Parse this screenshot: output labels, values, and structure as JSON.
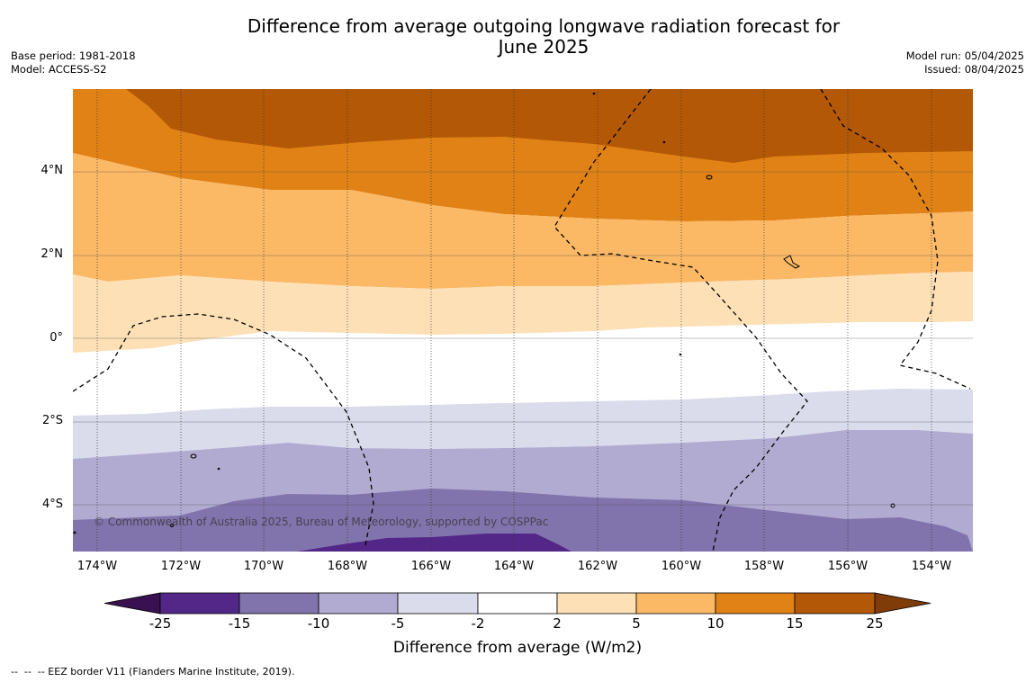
{
  "title_line1": "Difference from average outgoing longwave radiation forecast for",
  "title_line2": "June 2025",
  "meta_left": {
    "base_period": "Base period: 1981-2018",
    "model": "Model: ACCESS-S2"
  },
  "meta_right": {
    "model_run": "Model run: 05/04/2025",
    "issued": "Issued: 08/04/2025"
  },
  "y_ticks": [
    "4°N",
    "2°N",
    "0°",
    "2°S",
    "4°S"
  ],
  "x_ticks": [
    "174°W",
    "172°W",
    "170°W",
    "168°W",
    "166°W",
    "164°W",
    "162°W",
    "160°W",
    "158°W",
    "156°W",
    "154°W"
  ],
  "copyright": "© Commonwealth of Australia 2025, Bureau of Meteorology, supported by COSPPac",
  "colorbar": {
    "tick_labels": [
      "-25",
      "-15",
      "-10",
      "-5",
      "-2",
      "2",
      "5",
      "10",
      "15",
      "25"
    ],
    "colors": [
      "#3a1150",
      "#522787",
      "#8173ab",
      "#b1aad1",
      "#dadbeb",
      "#ffffff",
      "#fde0b6",
      "#fbb865",
      "#e08216",
      "#b35806",
      "#7f3b08"
    ],
    "title": "Difference from average (W/m2)"
  },
  "footer": "--  --  -- EEZ border V11 (Flanders Marine Institute, 2019)."
}
